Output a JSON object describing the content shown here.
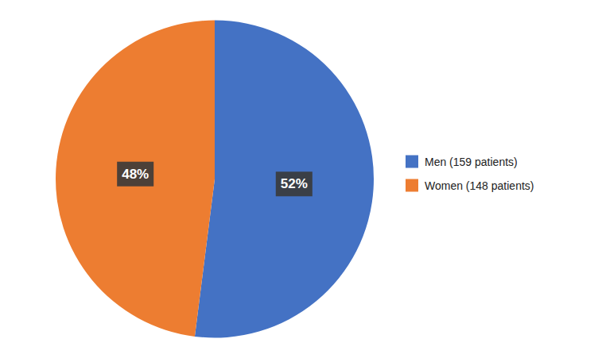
{
  "chart_data": {
    "type": "pie",
    "categories": [
      "Men (159 patients)",
      "Women (148 patients)"
    ],
    "values": [
      52,
      48
    ],
    "value_labels": [
      "52%",
      "48%"
    ],
    "colors": [
      "#4472C4",
      "#ED7D31"
    ],
    "data_labels": true,
    "legend": "right"
  }
}
